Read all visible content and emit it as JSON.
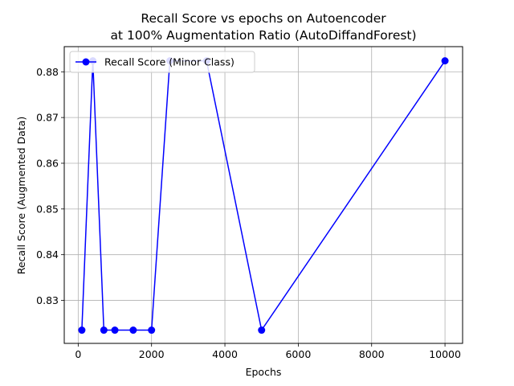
{
  "chart_data": {
    "type": "line",
    "title_line1": "Recall Score vs epochs on Autoencoder",
    "title_line2": "at 100% Augmentation Ratio (AutoDiffandForest)",
    "xlabel": "Epochs",
    "ylabel": "Recall Score (Augmented Data)",
    "xlim": [
      -380,
      10480
    ],
    "ylim": [
      0.8206,
      0.8855
    ],
    "xticks": [
      0,
      2000,
      4000,
      6000,
      8000,
      10000
    ],
    "xtick_labels": [
      "0",
      "2000",
      "4000",
      "6000",
      "8000",
      "10000"
    ],
    "yticks": [
      0.83,
      0.84,
      0.85,
      0.86,
      0.87,
      0.88
    ],
    "ytick_labels": [
      "0.83",
      "0.84",
      "0.85",
      "0.86",
      "0.87",
      "0.88"
    ],
    "grid": true,
    "legend_position": "top-left",
    "series": [
      {
        "name": "Recall Score (Minor Class)",
        "color": "#0000ff",
        "marker": "circle",
        "x": [
          100,
          400,
          700,
          1000,
          1500,
          2000,
          2500,
          3500,
          5000,
          10000
        ],
        "y": [
          0.8235,
          0.8824,
          0.8235,
          0.8235,
          0.8235,
          0.8235,
          0.8824,
          0.8824,
          0.8235,
          0.8824
        ]
      }
    ]
  }
}
